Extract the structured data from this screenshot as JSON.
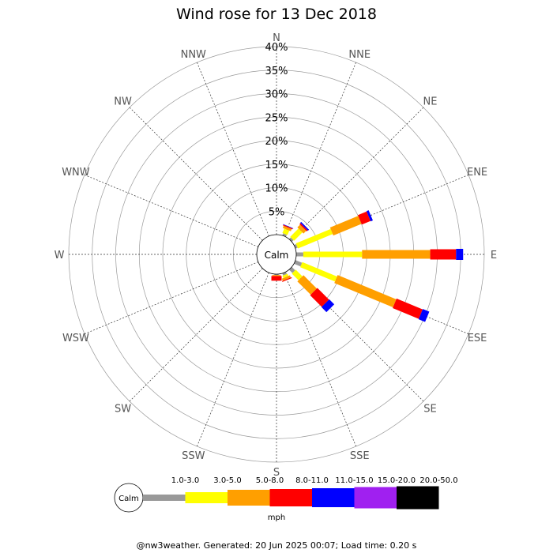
{
  "chart_data": {
    "type": "wind-rose",
    "title": "Wind rose for 13 Dec 2018",
    "directions": [
      "N",
      "NNE",
      "NE",
      "ENE",
      "E",
      "ESE",
      "SE",
      "SSE",
      "S",
      "SSW",
      "SW",
      "WSW",
      "W",
      "WNW",
      "NW",
      "NNW"
    ],
    "ring_labels": [
      "5%",
      "10%",
      "15%",
      "20%",
      "25%",
      "30%",
      "35%",
      "40%"
    ],
    "rlim": [
      0,
      40
    ],
    "calm_label": "Calm",
    "speed_bins": [
      {
        "label": "1.0-3.0",
        "color": "#999999"
      },
      {
        "label": "3.0-5.0",
        "color": "#ffff00"
      },
      {
        "label": "5.0-8.0",
        "color": "#ff9f00"
      },
      {
        "label": "8.0-11.0",
        "color": "#ff0000"
      },
      {
        "label": "11.0-15.0",
        "color": "#0000ff"
      },
      {
        "label": "15.0-20.0",
        "color": "#a020f0"
      },
      {
        "label": "20.0-50.0",
        "color": "#000000"
      }
    ],
    "series": [
      {
        "direction": "N",
        "values": [
          0,
          0,
          0,
          0,
          0,
          0,
          0
        ]
      },
      {
        "direction": "NNE",
        "values": [
          0.5,
          1.0,
          0.5,
          0.2,
          0.1,
          0,
          0
        ]
      },
      {
        "direction": "NE",
        "values": [
          0.5,
          2.5,
          0.8,
          0.3,
          0.3,
          0,
          0
        ]
      },
      {
        "direction": "ENE",
        "values": [
          0.5,
          8.0,
          6.5,
          2.0,
          0.5,
          0,
          0
        ]
      },
      {
        "direction": "E",
        "values": [
          1.5,
          12.5,
          14.5,
          5.5,
          1.5,
          0,
          0
        ]
      },
      {
        "direction": "ESE",
        "values": [
          1.5,
          8.0,
          13.5,
          6.0,
          1.5,
          0,
          0
        ]
      },
      {
        "direction": "SE",
        "values": [
          1.0,
          2.0,
          4.0,
          3.5,
          1.5,
          0,
          0
        ]
      },
      {
        "direction": "SSE",
        "values": [
          0.5,
          0.5,
          0.5,
          0.2,
          0,
          0,
          0
        ]
      },
      {
        "direction": "S",
        "values": [
          0.2,
          0,
          0.2,
          1.0,
          0,
          0,
          0
        ]
      },
      {
        "direction": "SSW",
        "values": [
          0,
          0,
          0,
          0,
          0,
          0,
          0
        ]
      },
      {
        "direction": "SW",
        "values": [
          0,
          0,
          0,
          0,
          0,
          0,
          0
        ]
      },
      {
        "direction": "WSW",
        "values": [
          0,
          0,
          0,
          0,
          0,
          0,
          0
        ]
      },
      {
        "direction": "W",
        "values": [
          0,
          0,
          0,
          0,
          0,
          0,
          0
        ]
      },
      {
        "direction": "WNW",
        "values": [
          0,
          0,
          0,
          0,
          0,
          0,
          0
        ]
      },
      {
        "direction": "NW",
        "values": [
          0,
          0,
          0,
          0,
          0,
          0,
          0
        ]
      },
      {
        "direction": "NNW",
        "values": [
          0,
          0,
          0,
          0,
          0,
          0,
          0
        ]
      }
    ]
  },
  "legend": {
    "calm_label": "Calm",
    "unit": "mph"
  },
  "footer": "@nw3weather. Generated: 20 Jun 2025 00:07; Load time: 0.20 s"
}
